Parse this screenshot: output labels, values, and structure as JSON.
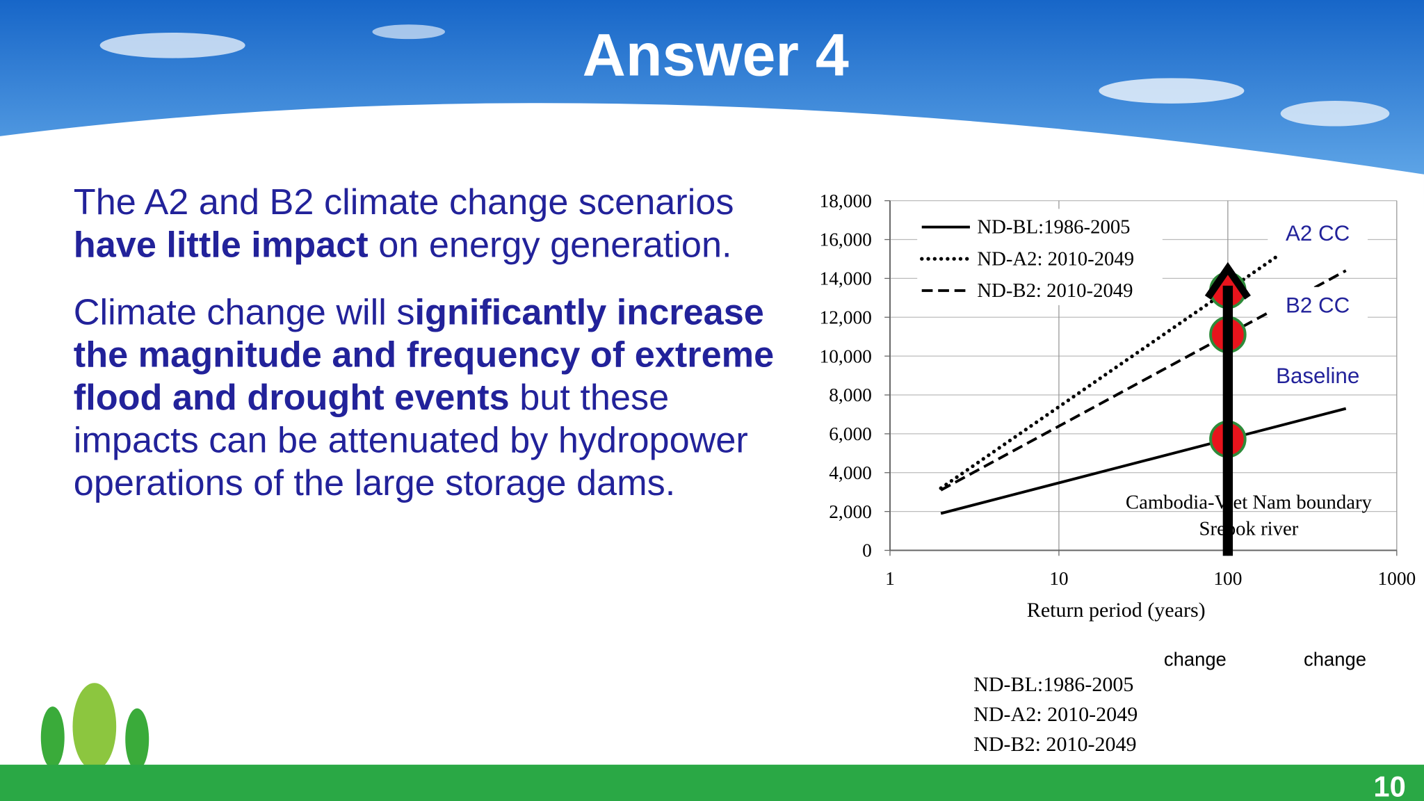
{
  "header": {
    "title": "Answer 4"
  },
  "body": {
    "paragraphs": [
      {
        "runs": [
          {
            "text": "The A2 and B2 climate change scenarios ",
            "bold": false
          },
          {
            "text": "have little impact",
            "bold": true
          },
          {
            "text": " on energy generation.",
            "bold": false
          }
        ]
      },
      {
        "runs": [
          {
            "text": "Climate change will s",
            "bold": false
          },
          {
            "text": "ignificantly increase the magnitude and frequency of extreme flood and drought events",
            "bold": true
          },
          {
            "text": " but these impacts can be attenuated by hydropower operations of the large storage dams.",
            "bold": false
          }
        ]
      }
    ]
  },
  "chart_data": {
    "type": "line",
    "x_label": "Return period (years)",
    "x": [
      2,
      5,
      10,
      20,
      50,
      100,
      200,
      500
    ],
    "xlim": [
      1,
      1000
    ],
    "xscale": "log",
    "xticks": [
      1,
      10,
      100,
      1000
    ],
    "ylim": [
      0,
      18000
    ],
    "yticks": [
      0,
      {
        "value": 2000,
        "label": "2,000"
      },
      {
        "value": 4000,
        "label": "4,000"
      },
      {
        "value": 6000,
        "label": "6,000"
      },
      {
        "value": 8000,
        "label": "8,000"
      },
      {
        "value": 10000,
        "label": "10,000"
      },
      {
        "value": 12000,
        "label": "12,000"
      },
      {
        "value": 14000,
        "label": "14,000"
      },
      {
        "value": 16000,
        "label": "16,000"
      },
      {
        "value": 18000,
        "label": "18,000"
      }
    ],
    "grid": true,
    "legend": "upper left",
    "highlight_x": 100,
    "series": [
      {
        "name": "ND-BL:1986-2005",
        "color": "#000000",
        "dash": "solid",
        "values": [
          1900,
          2796,
          3474,
          4152,
          5048,
          5726,
          6404,
          7300
        ]
      },
      {
        "name": "ND-A2: 2010-2049",
        "color": "#000000",
        "dash": "dotted",
        "values": [
          3200,
          5587,
          7392,
          9197,
          11584,
          13389,
          15194,
          null
        ]
      },
      {
        "name": "ND-B2: 2010-2049",
        "color": "#000000",
        "dash": "dashed",
        "values": [
          3100,
          4975,
          6394,
          7812,
          9688,
          11106,
          12524,
          14400
        ]
      }
    ],
    "annotations": [
      "A2 CC",
      "B2 CC",
      "Baseline",
      "Cambodia-Viet Nam boundary",
      "Srepok river"
    ]
  },
  "notes": {
    "overlay_labels": [
      "change",
      "change"
    ],
    "legend_copy": [
      "ND-BL:1986-2005",
      "ND-A2: 2010-2049",
      "ND-B2: 2010-2049"
    ]
  },
  "footer": {
    "page_number": "10"
  }
}
